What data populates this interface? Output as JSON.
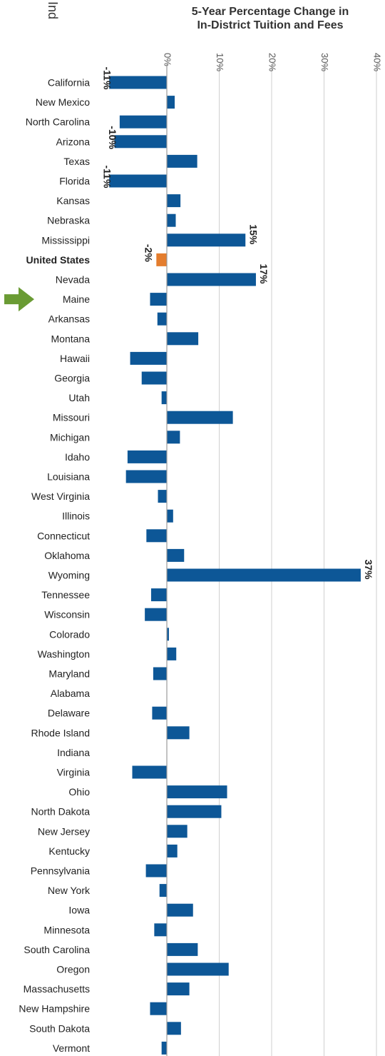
{
  "figure": {
    "cut_label": "Ind",
    "title_line1": "5-Year Percentage Change in",
    "title_line2": "In-District Tuition and Fees",
    "arrow_color": "#6a9b34",
    "arrow_target": "Maine"
  },
  "chart_data": {
    "type": "bar",
    "orientation": "horizontal",
    "title": "5-Year Percentage Change in In-District Tuition and Fees",
    "xlabel": "",
    "ylabel": "",
    "xlim": [
      -11,
      40
    ],
    "x_ticks": [
      0,
      10,
      20,
      30,
      40
    ],
    "x_tick_labels": [
      "0%",
      "10%",
      "20%",
      "30%",
      "40%"
    ],
    "grid": true,
    "legend": "none",
    "colors": {
      "bar": "#0d5797",
      "highlight": "#e47d2e",
      "grid": "#cfcfcf",
      "axis": "#9a9a9a"
    },
    "highlight_category": "United States",
    "categories": [
      "California",
      "New Mexico",
      "North Carolina",
      "Arizona",
      "Texas",
      "Florida",
      "Kansas",
      "Nebraska",
      "Mississippi",
      "United States",
      "Nevada",
      "Maine",
      "Arkansas",
      "Montana",
      "Hawaii",
      "Georgia",
      "Utah",
      "Missouri",
      "Michigan",
      "Idaho",
      "Louisiana",
      "West Virginia",
      "Illinois",
      "Connecticut",
      "Oklahoma",
      "Wyoming",
      "Tennessee",
      "Wisconsin",
      "Colorado",
      "Washington",
      "Maryland",
      "Alabama",
      "Delaware",
      "Rhode Island",
      "Indiana",
      "Virginia",
      "Ohio",
      "North Dakota",
      "New Jersey",
      "Kentucky",
      "Pennsylvania",
      "New York",
      "Iowa",
      "Minnesota",
      "South Carolina",
      "Oregon",
      "Massachusetts",
      "New Hampshire",
      "South Dakota",
      "Vermont"
    ],
    "values": [
      -11,
      1.5,
      -9,
      -10,
      5.8,
      -11,
      2.6,
      1.7,
      15,
      -2,
      17,
      -3.2,
      -1.8,
      6,
      -7,
      -4.8,
      -1,
      12.6,
      2.5,
      -7.5,
      -7.8,
      -1.7,
      1.2,
      -3.9,
      3.3,
      37,
      -3,
      -4.2,
      0.4,
      1.8,
      -2.6,
      0,
      -2.8,
      4.3,
      0,
      -6.6,
      11.5,
      10.4,
      3.9,
      2,
      -4,
      -1.4,
      5,
      -2.4,
      5.9,
      11.8,
      4.3,
      -3.2,
      2.7,
      -1
    ]
  },
  "data_labels": [
    {
      "category": "California",
      "text": "-11%"
    },
    {
      "category": "Arizona",
      "text": "-10%"
    },
    {
      "category": "Florida",
      "text": "-11%"
    },
    {
      "category": "Mississippi",
      "text": "15%"
    },
    {
      "category": "United States",
      "text": "-2%"
    },
    {
      "category": "Nevada",
      "text": "17%"
    },
    {
      "category": "Wyoming",
      "text": "37%"
    }
  ]
}
